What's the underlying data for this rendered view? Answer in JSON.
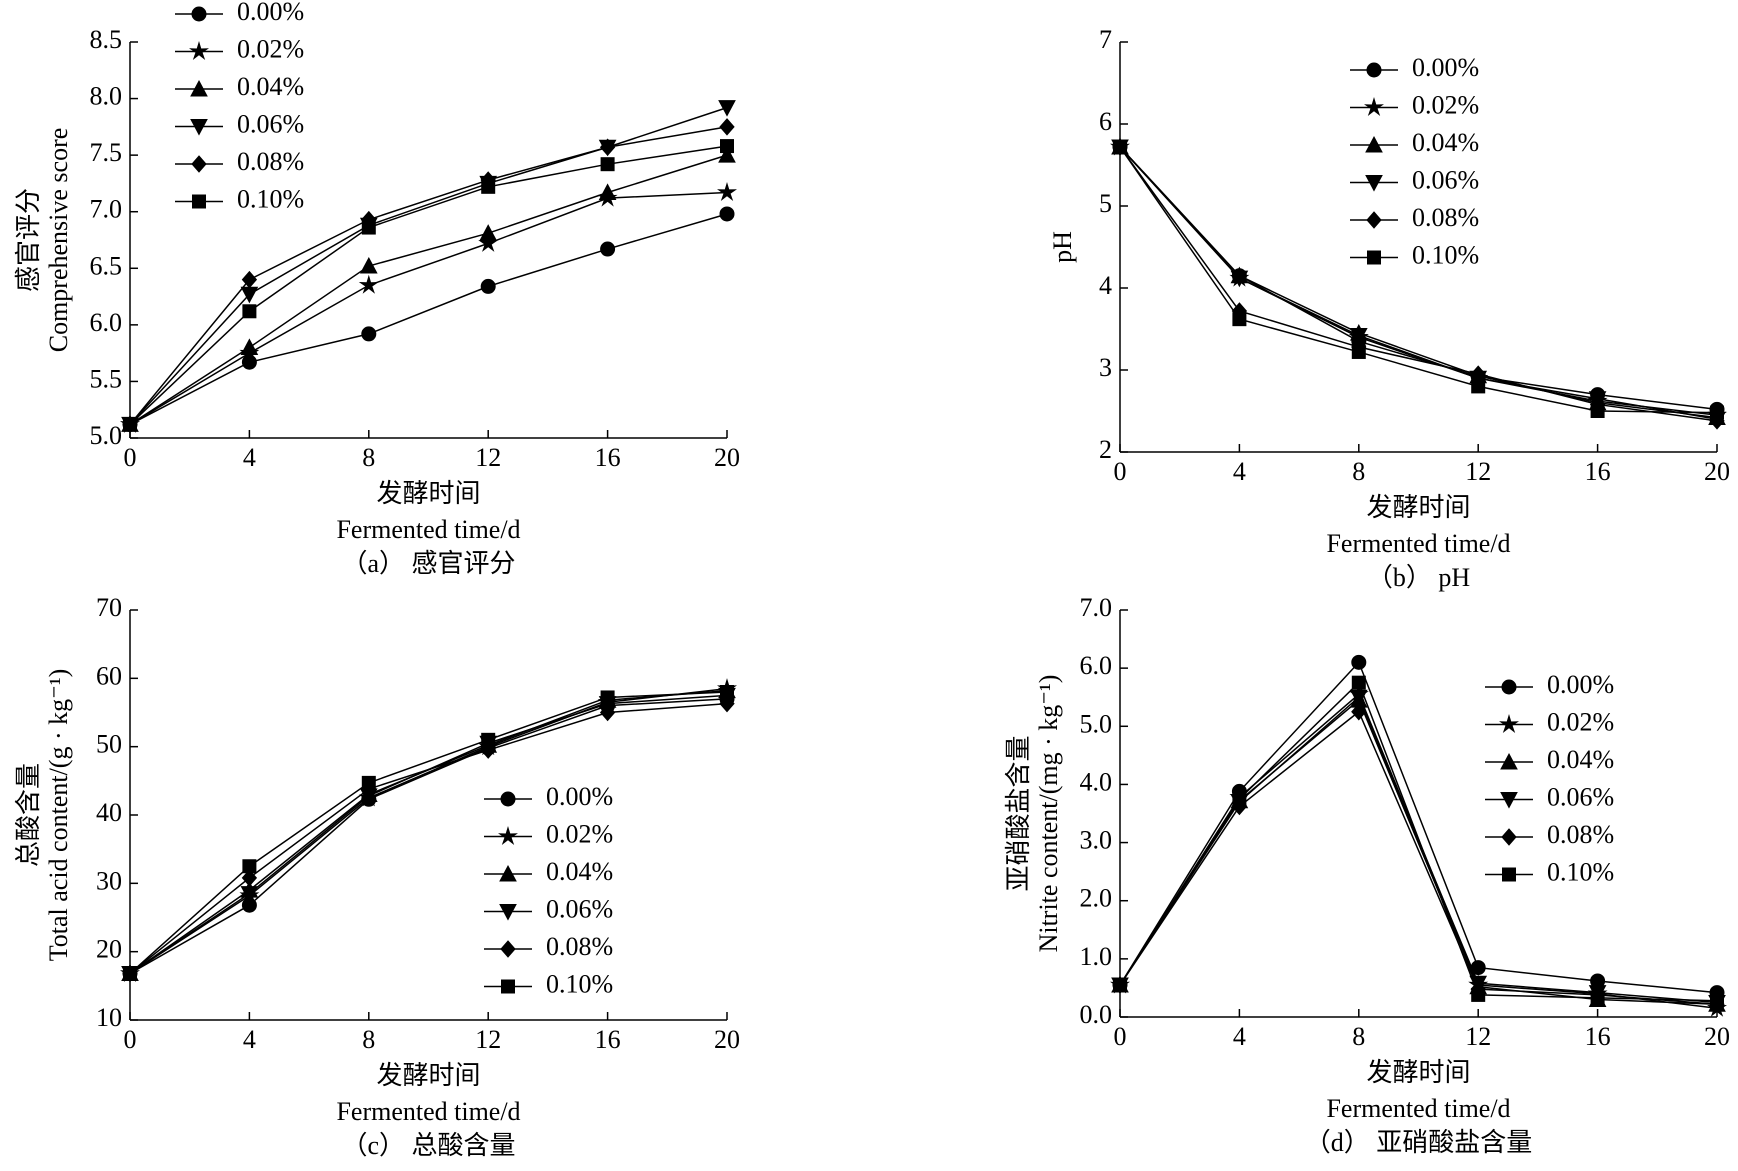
{
  "chart_data": [
    {
      "type": "line",
      "title": "（a） 感官评分",
      "ylabel": [
        "感官评分",
        "Comprehensive score"
      ],
      "xlabel": [
        "发酵时间",
        "Fermented time/d"
      ],
      "x": [
        0,
        4,
        8,
        12,
        16,
        20
      ],
      "xlim": [
        0,
        20
      ],
      "xticks": [
        0,
        4,
        8,
        12,
        16,
        20
      ],
      "ylim": [
        5.0,
        8.5
      ],
      "yticks": [
        {
          "value": 5,
          "label": "5.0"
        },
        5.5,
        {
          "value": 6,
          "label": "6.0"
        },
        6.5,
        {
          "value": 7,
          "label": "7.0"
        },
        7.5,
        {
          "value": 8,
          "label": "8.0"
        },
        8.5
      ],
      "legend": "upper left",
      "series": [
        {
          "name": "0.00%",
          "color": "#000000",
          "marker": "circle",
          "values": [
            5.12,
            5.67,
            5.92,
            6.34,
            6.67,
            6.98
          ]
        },
        {
          "name": "0.02%",
          "color": "#000000",
          "marker": "star",
          "values": [
            5.12,
            5.75,
            6.35,
            6.72,
            7.12,
            7.17
          ]
        },
        {
          "name": "0.04%",
          "color": "#000000",
          "marker": "triangle-up",
          "values": [
            5.12,
            5.8,
            6.52,
            6.81,
            7.17,
            7.5
          ]
        },
        {
          "name": "0.06%",
          "color": "#000000",
          "marker": "triangle-down",
          "values": [
            5.12,
            6.27,
            6.88,
            7.25,
            7.57,
            7.92
          ]
        },
        {
          "name": "0.08%",
          "color": "#000000",
          "marker": "diamond",
          "values": [
            5.12,
            6.4,
            6.93,
            7.28,
            7.57,
            7.75
          ]
        },
        {
          "name": "0.10%",
          "color": "#000000",
          "marker": "square",
          "values": [
            5.12,
            6.12,
            6.86,
            7.22,
            7.42,
            7.58
          ]
        }
      ]
    },
    {
      "type": "line",
      "title": "（b） pH",
      "ylabel": [
        "pH"
      ],
      "xlabel": [
        "发酵时间",
        "Fermented time/d"
      ],
      "x": [
        0,
        4,
        8,
        12,
        16,
        20
      ],
      "xlim": [
        0,
        20
      ],
      "xticks": [
        0,
        4,
        8,
        12,
        16,
        20
      ],
      "ylim": [
        2,
        7
      ],
      "yticks": [
        2,
        3,
        4,
        5,
        6,
        7
      ],
      "legend": "upper center",
      "series": [
        {
          "name": "0.00%",
          "color": "#000000",
          "marker": "circle",
          "values": [
            5.72,
            4.15,
            3.35,
            2.92,
            2.7,
            2.52
          ]
        },
        {
          "name": "0.02%",
          "color": "#000000",
          "marker": "star",
          "values": [
            5.72,
            4.12,
            3.4,
            2.9,
            2.62,
            2.45
          ]
        },
        {
          "name": "0.04%",
          "color": "#000000",
          "marker": "triangle-up",
          "values": [
            5.72,
            4.15,
            3.45,
            2.93,
            2.6,
            2.42
          ]
        },
        {
          "name": "0.06%",
          "color": "#000000",
          "marker": "triangle-down",
          "values": [
            5.72,
            4.12,
            3.42,
            2.9,
            2.65,
            2.4
          ]
        },
        {
          "name": "0.08%",
          "color": "#000000",
          "marker": "diamond",
          "values": [
            5.72,
            3.72,
            3.28,
            2.95,
            2.58,
            2.38
          ]
        },
        {
          "name": "0.10%",
          "color": "#000000",
          "marker": "square",
          "values": [
            5.72,
            3.62,
            3.22,
            2.8,
            2.5,
            2.48
          ]
        }
      ]
    },
    {
      "type": "line",
      "title": "（c） 总酸含量",
      "ylabel": [
        "总酸含量",
        "Total acid content/(g · kg⁻¹)"
      ],
      "xlabel": [
        "发酵时间",
        "Fermented time/d"
      ],
      "x": [
        0,
        4,
        8,
        12,
        16,
        20
      ],
      "xlim": [
        0,
        20
      ],
      "xticks": [
        0,
        4,
        8,
        12,
        16,
        20
      ],
      "ylim": [
        10,
        70
      ],
      "yticks": [
        10,
        20,
        30,
        40,
        50,
        60,
        70
      ],
      "legend": "center right",
      "series": [
        {
          "name": "0.00%",
          "color": "#000000",
          "marker": "circle",
          "values": [
            16.8,
            26.8,
            42.3,
            49.8,
            56.0,
            57.0
          ]
        },
        {
          "name": "0.02%",
          "color": "#000000",
          "marker": "star",
          "values": [
            16.8,
            28.2,
            42.5,
            50.0,
            56.5,
            58.5
          ]
        },
        {
          "name": "0.04%",
          "color": "#000000",
          "marker": "triangle-up",
          "values": [
            16.8,
            29.0,
            43.0,
            50.2,
            56.8,
            58.2
          ]
        },
        {
          "name": "0.06%",
          "color": "#000000",
          "marker": "triangle-down",
          "values": [
            16.8,
            28.5,
            42.8,
            50.5,
            56.3,
            57.5
          ]
        },
        {
          "name": "0.08%",
          "color": "#000000",
          "marker": "diamond",
          "values": [
            16.8,
            30.8,
            43.8,
            49.5,
            55.0,
            56.3
          ]
        },
        {
          "name": "0.10%",
          "color": "#000000",
          "marker": "square",
          "values": [
            16.8,
            32.5,
            44.7,
            51.0,
            57.2,
            58.0
          ]
        }
      ]
    },
    {
      "type": "line",
      "title": "（d） 亚硝酸盐含量",
      "ylabel": [
        "亚硝酸盐含量",
        "Nitrite content/(mg · kg⁻¹)"
      ],
      "xlabel": [
        "发酵时间",
        "Fermented time/d"
      ],
      "x": [
        0,
        4,
        8,
        12,
        16,
        20
      ],
      "xlim": [
        0,
        20
      ],
      "xticks": [
        0,
        4,
        8,
        12,
        16,
        20
      ],
      "ylim": [
        0,
        7
      ],
      "yticks": [
        {
          "value": 0,
          "label": "0.0"
        },
        {
          "value": 1,
          "label": "1.0"
        },
        {
          "value": 2,
          "label": "2.0"
        },
        {
          "value": 3,
          "label": "3.0"
        },
        {
          "value": 4,
          "label": "4.0"
        },
        {
          "value": 5,
          "label": "5.0"
        },
        {
          "value": 6,
          "label": "6.0"
        },
        {
          "value": 7,
          "label": "7.0"
        }
      ],
      "legend": "upper right",
      "series": [
        {
          "name": "0.00%",
          "color": "#000000",
          "marker": "circle",
          "values": [
            0.55,
            3.88,
            6.1,
            0.85,
            0.62,
            0.42
          ]
        },
        {
          "name": "0.02%",
          "color": "#000000",
          "marker": "star",
          "values": [
            0.55,
            3.78,
            5.55,
            0.55,
            0.4,
            0.15
          ]
        },
        {
          "name": "0.04%",
          "color": "#000000",
          "marker": "triangle-up",
          "values": [
            0.55,
            3.72,
            5.45,
            0.52,
            0.3,
            0.22
          ]
        },
        {
          "name": "0.06%",
          "color": "#000000",
          "marker": "triangle-down",
          "values": [
            0.55,
            3.7,
            5.5,
            0.58,
            0.42,
            0.25
          ]
        },
        {
          "name": "0.08%",
          "color": "#000000",
          "marker": "diamond",
          "values": [
            0.55,
            3.62,
            5.25,
            0.48,
            0.38,
            0.22
          ]
        },
        {
          "name": "0.10%",
          "color": "#000000",
          "marker": "square",
          "values": [
            0.55,
            3.75,
            5.75,
            0.38,
            0.33,
            0.28
          ]
        }
      ]
    }
  ]
}
